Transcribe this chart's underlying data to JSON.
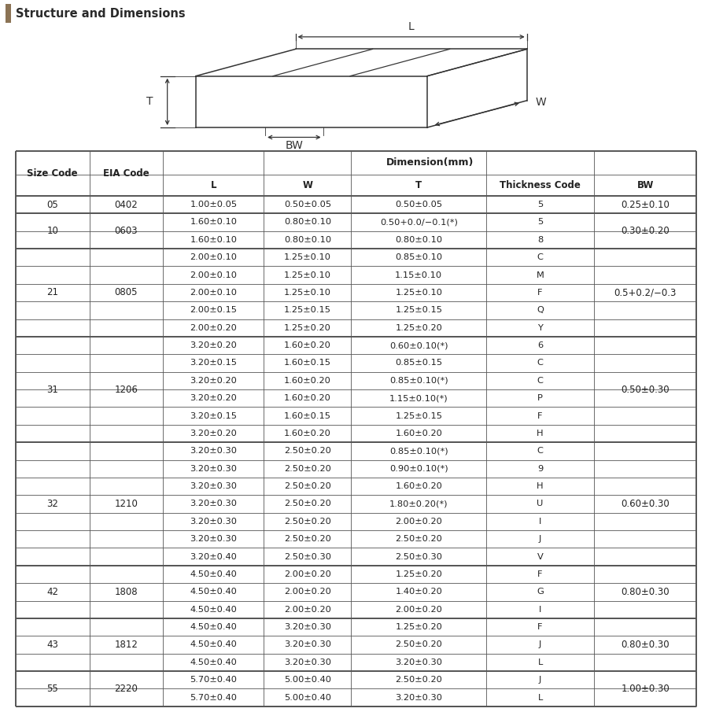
{
  "title": "Structure and Dimensions",
  "title_bar_color": "#e8e4db",
  "title_accent_color": "#8B7355",
  "rows": [
    [
      "05",
      "0402",
      "1.00±0.05",
      "0.50±0.05",
      "0.50±0.05",
      "5",
      "0.25±0.10"
    ],
    [
      "10",
      "0603",
      "1.60±0.10",
      "0.80±0.10",
      "0.50+0.0/−0.1(*)",
      "5",
      "0.30±0.20"
    ],
    [
      "",
      "",
      "1.60±0.10",
      "0.80±0.10",
      "0.80±0.10",
      "8",
      ""
    ],
    [
      "21",
      "0805",
      "2.00±0.10",
      "1.25±0.10",
      "0.85±0.10",
      "C",
      "0.5+0.2/−0.3"
    ],
    [
      "",
      "",
      "2.00±0.10",
      "1.25±0.10",
      "1.15±0.10",
      "M",
      ""
    ],
    [
      "",
      "",
      "2.00±0.10",
      "1.25±0.10",
      "1.25±0.10",
      "F",
      ""
    ],
    [
      "",
      "",
      "2.00±0.15",
      "1.25±0.15",
      "1.25±0.15",
      "Q",
      ""
    ],
    [
      "",
      "",
      "2.00±0.20",
      "1.25±0.20",
      "1.25±0.20",
      "Y",
      ""
    ],
    [
      "31",
      "1206",
      "3.20±0.20",
      "1.60±0.20",
      "0.60±0.10(*)",
      "6",
      "0.50±0.30"
    ],
    [
      "",
      "",
      "3.20±0.15",
      "1.60±0.15",
      "0.85±0.15",
      "C",
      ""
    ],
    [
      "",
      "",
      "3.20±0.20",
      "1.60±0.20",
      "0.85±0.10(*)",
      "C",
      ""
    ],
    [
      "",
      "",
      "3.20±0.20",
      "1.60±0.20",
      "1.15±0.10(*)",
      "P",
      ""
    ],
    [
      "",
      "",
      "3.20±0.15",
      "1.60±0.15",
      "1.25±0.15",
      "F",
      ""
    ],
    [
      "",
      "",
      "3.20±0.20",
      "1.60±0.20",
      "1.60±0.20",
      "H",
      ""
    ],
    [
      "32",
      "1210",
      "3.20±0.30",
      "2.50±0.20",
      "0.85±0.10(*)",
      "C",
      "0.60±0.30"
    ],
    [
      "",
      "",
      "3.20±0.30",
      "2.50±0.20",
      "0.90±0.10(*)",
      "9",
      ""
    ],
    [
      "",
      "",
      "3.20±0.30",
      "2.50±0.20",
      "1.60±0.20",
      "H",
      ""
    ],
    [
      "",
      "",
      "3.20±0.30",
      "2.50±0.20",
      "1.80±0.20(*)",
      "U",
      ""
    ],
    [
      "",
      "",
      "3.20±0.30",
      "2.50±0.20",
      "2.00±0.20",
      "I",
      ""
    ],
    [
      "",
      "",
      "3.20±0.30",
      "2.50±0.20",
      "2.50±0.20",
      "J",
      ""
    ],
    [
      "",
      "",
      "3.20±0.40",
      "2.50±0.30",
      "2.50±0.30",
      "V",
      ""
    ],
    [
      "42",
      "1808",
      "4.50±0.40",
      "2.00±0.20",
      "1.25±0.20",
      "F",
      "0.80±0.30"
    ],
    [
      "",
      "",
      "4.50±0.40",
      "2.00±0.20",
      "1.40±0.20",
      "G",
      ""
    ],
    [
      "",
      "",
      "4.50±0.40",
      "2.00±0.20",
      "2.00±0.20",
      "I",
      ""
    ],
    [
      "43",
      "1812",
      "4.50±0.40",
      "3.20±0.30",
      "1.25±0.20",
      "F",
      "0.80±0.30"
    ],
    [
      "",
      "",
      "4.50±0.40",
      "3.20±0.30",
      "2.50±0.20",
      "J",
      ""
    ],
    [
      "",
      "",
      "4.50±0.40",
      "3.20±0.30",
      "3.20±0.30",
      "L",
      ""
    ],
    [
      "55",
      "2220",
      "5.70±0.40",
      "5.00±0.40",
      "2.50±0.20",
      "J",
      "1.00±0.30"
    ],
    [
      "",
      "",
      "5.70±0.40",
      "5.00±0.40",
      "3.20±0.30",
      "L",
      ""
    ]
  ],
  "group_info": [
    [
      "05",
      0,
      0,
      "0402",
      "0.25±0.10"
    ],
    [
      "10",
      1,
      2,
      "0603",
      "0.30±0.20"
    ],
    [
      "21",
      3,
      7,
      "0805",
      "0.5+0.2/−0.3"
    ],
    [
      "31",
      8,
      13,
      "1206",
      "0.50±0.30"
    ],
    [
      "32",
      14,
      20,
      "1210",
      "0.60±0.30"
    ],
    [
      "42",
      21,
      23,
      "1808",
      "0.80±0.30"
    ],
    [
      "43",
      24,
      26,
      "1812",
      "0.80±0.30"
    ],
    [
      "55",
      27,
      28,
      "2220",
      "1.00±0.30"
    ]
  ],
  "col_props": [
    0.108,
    0.108,
    0.148,
    0.128,
    0.198,
    0.158,
    0.15
  ],
  "line_color": "#555555",
  "text_color": "#222222"
}
